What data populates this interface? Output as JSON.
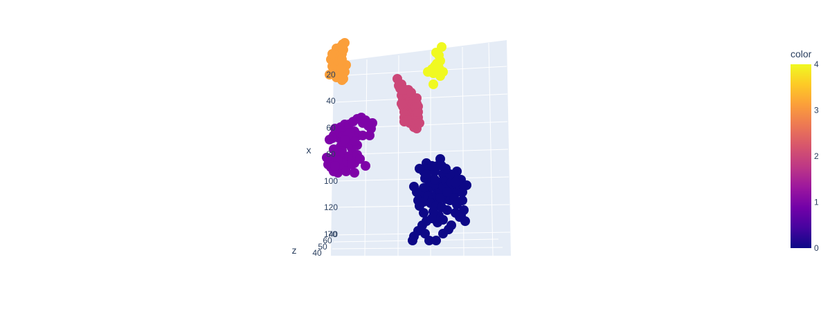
{
  "chart_data": {
    "type": "scatter3d",
    "title": "",
    "x_axis": {
      "label": "x",
      "ticks": [
        "20",
        "40",
        "60",
        "80",
        "100",
        "120",
        "140"
      ]
    },
    "z_axis": {
      "label": "z",
      "ticks": [
        "40",
        "50",
        "60",
        "70"
      ]
    },
    "colorbar": {
      "title": "color",
      "ticks": [
        "0",
        "1",
        "2",
        "3",
        "4"
      ],
      "range": [
        0,
        4
      ],
      "colorscale": [
        "#0d0887",
        "#46039f",
        "#7201a8",
        "#9c179e",
        "#bd3786",
        "#d8576b",
        "#ed7953",
        "#fb9f3a",
        "#fdca26",
        "#f0f921"
      ]
    },
    "series": [
      {
        "cluster": 4,
        "color": "#f0f921",
        "points": [
          [
            32,
            6
          ],
          [
            24,
            14
          ],
          [
            30,
            26
          ],
          [
            25,
            30
          ],
          [
            22,
            34
          ],
          [
            24,
            32
          ],
          [
            26,
            36
          ],
          [
            25,
            40
          ],
          [
            28,
            36
          ],
          [
            18,
            38
          ],
          [
            34,
            42
          ],
          [
            26,
            34
          ],
          [
            20,
            44
          ],
          [
            12,
            42
          ],
          [
            28,
            18
          ],
          [
            30,
            48
          ],
          [
            20,
            60
          ]
        ]
      },
      {
        "cluster": 3,
        "color": "#fb9f3a",
        "points": [
          [
            12,
            34
          ],
          [
            10,
            40
          ],
          [
            6,
            52
          ],
          [
            8,
            30
          ],
          [
            16,
            14
          ],
          [
            18,
            26
          ],
          [
            24,
            22
          ],
          [
            22,
            12
          ],
          [
            25,
            8
          ],
          [
            28,
            6
          ],
          [
            26,
            16
          ],
          [
            20,
            28
          ],
          [
            14,
            24
          ],
          [
            10,
            22
          ],
          [
            14,
            42
          ],
          [
            18,
            46
          ],
          [
            24,
            60
          ],
          [
            22,
            52
          ],
          [
            24,
            46
          ],
          [
            26,
            44
          ],
          [
            22,
            40
          ],
          [
            16,
            56
          ],
          [
            22,
            36
          ],
          [
            30,
            38
          ],
          [
            20,
            32
          ],
          [
            18,
            36
          ],
          [
            12,
            44
          ],
          [
            26,
            58
          ],
          [
            24,
            30
          ],
          [
            28,
            48
          ],
          [
            22,
            44
          ]
        ]
      },
      {
        "cluster": 2,
        "color": "#cc4778",
        "points": [
          [
            40,
            66
          ],
          [
            48,
            80
          ],
          [
            56,
            94
          ],
          [
            60,
            70
          ],
          [
            52,
            82
          ],
          [
            58,
            102
          ],
          [
            54,
            72
          ],
          [
            48,
            70
          ],
          [
            50,
            64
          ],
          [
            46,
            62
          ],
          [
            44,
            58
          ],
          [
            42,
            60
          ],
          [
            40,
            56
          ],
          [
            38,
            52
          ],
          [
            36,
            54
          ],
          [
            38,
            60
          ],
          [
            42,
            64
          ],
          [
            46,
            68
          ],
          [
            50,
            72
          ],
          [
            52,
            76
          ],
          [
            56,
            78
          ],
          [
            58,
            82
          ],
          [
            56,
            86
          ],
          [
            54,
            90
          ],
          [
            52,
            88
          ],
          [
            50,
            84
          ],
          [
            48,
            86
          ],
          [
            46,
            82
          ],
          [
            44,
            78
          ],
          [
            42,
            74
          ],
          [
            40,
            72
          ],
          [
            40,
            78
          ],
          [
            42,
            82
          ],
          [
            44,
            86
          ],
          [
            46,
            90
          ],
          [
            48,
            94
          ],
          [
            50,
            92
          ],
          [
            52,
            96
          ],
          [
            54,
            100
          ],
          [
            56,
            96
          ],
          [
            58,
            90
          ],
          [
            60,
            86
          ],
          [
            58,
            74
          ],
          [
            56,
            66
          ],
          [
            54,
            62
          ],
          [
            52,
            60
          ],
          [
            50,
            58
          ],
          [
            48,
            56
          ],
          [
            46,
            54
          ],
          [
            44,
            52
          ],
          [
            44,
            66
          ],
          [
            48,
            62
          ],
          [
            52,
            66
          ],
          [
            56,
            70
          ],
          [
            60,
            78
          ],
          [
            58,
            66
          ],
          [
            38,
            70
          ],
          [
            40,
            86
          ],
          [
            44,
            90
          ],
          [
            36,
            66
          ],
          [
            40,
            92
          ],
          [
            62,
            94
          ],
          [
            32,
            40
          ],
          [
            36,
            38
          ],
          [
            34,
            44
          ],
          [
            42,
            46
          ],
          [
            46,
            46
          ],
          [
            38,
            46
          ],
          [
            50,
            50
          ],
          [
            58,
            58
          ],
          [
            30,
            30
          ]
        ]
      },
      {
        "cluster": 1,
        "color": "#7e03a8",
        "points": [
          [
            70,
            66
          ],
          [
            74,
            58
          ],
          [
            78,
            70
          ],
          [
            80,
            62
          ],
          [
            82,
            74
          ],
          [
            84,
            66
          ],
          [
            86,
            58
          ],
          [
            88,
            70
          ],
          [
            80,
            82
          ],
          [
            90,
            78
          ],
          [
            84,
            96
          ],
          [
            96,
            84
          ],
          [
            94,
            72
          ],
          [
            100,
            60
          ],
          [
            106,
            66
          ],
          [
            104,
            80
          ],
          [
            112,
            66
          ],
          [
            98,
            92
          ],
          [
            116,
            110
          ],
          [
            122,
            66
          ],
          [
            124,
            56
          ],
          [
            126,
            48
          ],
          [
            112,
            48
          ],
          [
            100,
            74
          ],
          [
            94,
            62
          ],
          [
            90,
            66
          ],
          [
            86,
            72
          ],
          [
            82,
            88
          ],
          [
            78,
            92
          ],
          [
            74,
            94
          ],
          [
            70,
            86
          ],
          [
            66,
            100
          ],
          [
            62,
            108
          ],
          [
            60,
            98
          ],
          [
            66,
            112
          ],
          [
            70,
            118
          ],
          [
            76,
            120
          ],
          [
            80,
            106
          ],
          [
            84,
            110
          ],
          [
            88,
            118
          ],
          [
            90,
            104
          ],
          [
            92,
            96
          ],
          [
            96,
            100
          ],
          [
            100,
            106
          ],
          [
            104,
            94
          ],
          [
            108,
            100
          ],
          [
            96,
            108
          ],
          [
            100,
            120
          ],
          [
            76,
            102
          ],
          [
            72,
            110
          ],
          [
            72,
            56
          ],
          [
            80,
            54
          ],
          [
            86,
            50
          ],
          [
            92,
            50
          ],
          [
            98,
            46
          ],
          [
            104,
            42
          ],
          [
            110,
            40
          ],
          [
            116,
            44
          ],
          [
            120,
            52
          ],
          [
            68,
            70
          ],
          [
            64,
            72
          ]
        ]
      },
      {
        "cluster": 0,
        "color": "#0d0887",
        "points": [
          [
            72,
            240
          ],
          [
            76,
            228
          ],
          [
            80,
            236
          ],
          [
            74,
            250
          ],
          [
            80,
            260
          ],
          [
            84,
            252
          ],
          [
            88,
            240
          ],
          [
            92,
            232
          ],
          [
            96,
            222
          ],
          [
            100,
            244
          ],
          [
            96,
            256
          ],
          [
            90,
            264
          ],
          [
            86,
            276
          ],
          [
            82,
            262
          ],
          [
            78,
            268
          ],
          [
            74,
            272
          ],
          [
            72,
            264
          ],
          [
            68,
            276
          ],
          [
            64,
            282
          ],
          [
            72,
            284
          ],
          [
            78,
            276
          ],
          [
            84,
            282
          ],
          [
            92,
            284
          ],
          [
            96,
            270
          ],
          [
            100,
            262
          ],
          [
            104,
            254
          ],
          [
            108,
            262
          ],
          [
            114,
            268
          ],
          [
            120,
            270
          ],
          [
            124,
            260
          ],
          [
            126,
            252
          ],
          [
            120,
            240
          ],
          [
            116,
            246
          ],
          [
            110,
            244
          ],
          [
            104,
            236
          ],
          [
            98,
            232
          ],
          [
            88,
            252
          ],
          [
            84,
            232
          ],
          [
            66,
            236
          ],
          [
            76,
            244
          ],
          [
            82,
            286
          ],
          [
            90,
            290
          ],
          [
            98,
            292
          ],
          [
            104,
            280
          ],
          [
            110,
            282
          ],
          [
            116,
            278
          ],
          [
            120,
            288
          ],
          [
            128,
            282
          ],
          [
            130,
            296
          ],
          [
            126,
            304
          ],
          [
            132,
            312
          ],
          [
            112,
            318
          ],
          [
            124,
            306
          ],
          [
            118,
            300
          ],
          [
            94,
            304
          ],
          [
            100,
            310
          ],
          [
            106,
            296
          ],
          [
            92,
            314
          ],
          [
            84,
            308
          ],
          [
            76,
            312
          ],
          [
            70,
            318
          ],
          [
            64,
            326
          ],
          [
            58,
            334
          ],
          [
            56,
            340
          ],
          [
            74,
            330
          ],
          [
            80,
            340
          ],
          [
            90,
            340
          ],
          [
            100,
            330
          ],
          [
            108,
            324
          ],
          [
            66,
            290
          ],
          [
            62,
            270
          ],
          [
            58,
            262
          ],
          [
            72,
            300
          ],
          [
            86,
            298
          ],
          [
            96,
            278
          ],
          [
            106,
            270
          ],
          [
            112,
            256
          ],
          [
            118,
            256
          ],
          [
            128,
            270
          ],
          [
            134,
            260
          ]
        ]
      }
    ]
  }
}
